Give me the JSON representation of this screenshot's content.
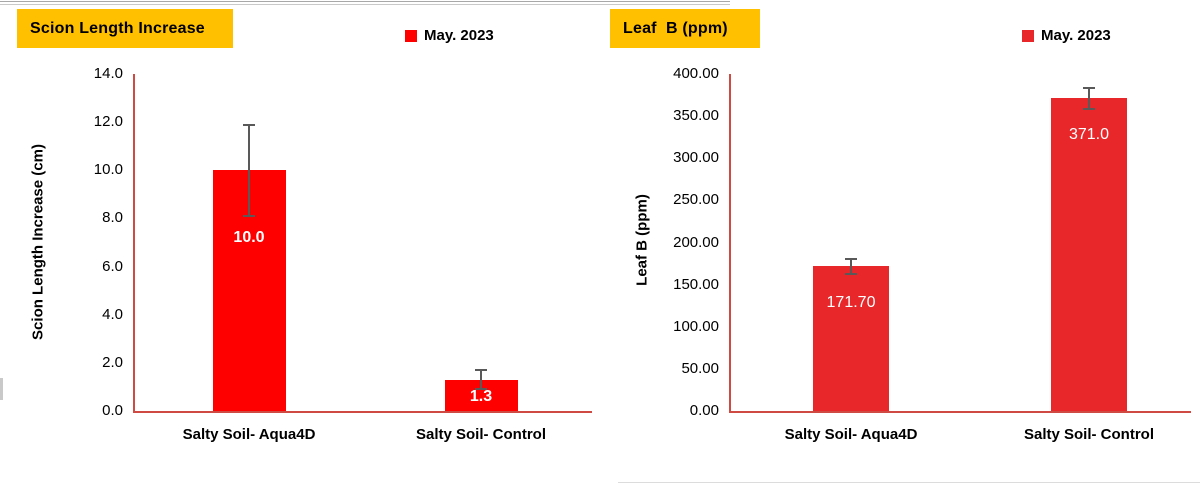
{
  "chart_data": [
    {
      "type": "bar",
      "title": "Scion Length Increase",
      "legend": "May. 2023",
      "legend_position": "top-right",
      "categories": [
        "Salty Soil- Aqua4D",
        "Salty Soil- Control"
      ],
      "values": [
        10.0,
        1.3
      ],
      "data_labels": [
        "10.0",
        "1.3"
      ],
      "error_bars_plus_minus": [
        1.9,
        0.4
      ],
      "xlabel": "",
      "ylabel": "Scion Length Increase (cm)",
      "ylim": [
        0,
        14
      ],
      "ytick_labels": [
        "14.0",
        "12.0",
        "10.0",
        "8.0",
        "6.0",
        "4.0",
        "2.0",
        "0.0"
      ],
      "grid": false,
      "colors": {
        "bar": "#FE0000",
        "legend_swatch": "#FE0000",
        "title_bg": "#FFC000",
        "title_text": "#000000",
        "axis": "#D04A44",
        "error_bar": "#595959",
        "data_label_text": "#FFFFFF"
      }
    },
    {
      "type": "bar",
      "title": "Leaf  B (ppm)",
      "legend": "May. 2023",
      "legend_position": "top-right",
      "categories": [
        "Salty Soil- Aqua4D",
        "Salty Soil- Control"
      ],
      "values": [
        171.7,
        371.0
      ],
      "data_labels": [
        "171.70",
        "371.0"
      ],
      "error_bars_plus_minus": [
        9,
        12
      ],
      "xlabel": "",
      "ylabel": "Leaf B (ppm)",
      "ylim": [
        0,
        400
      ],
      "ytick_labels": [
        "400.00",
        "350.00",
        "300.00",
        "250.00",
        "200.00",
        "150.00",
        "100.00",
        "50.00",
        "0.00"
      ],
      "grid": false,
      "colors": {
        "bar": "#E8272B",
        "legend_swatch": "#E8272B",
        "title_bg": "#FFC000",
        "title_text": "#000000",
        "axis": "#D04A44",
        "error_bar": "#595959",
        "data_label_text": "#FFFFFF"
      }
    }
  ]
}
